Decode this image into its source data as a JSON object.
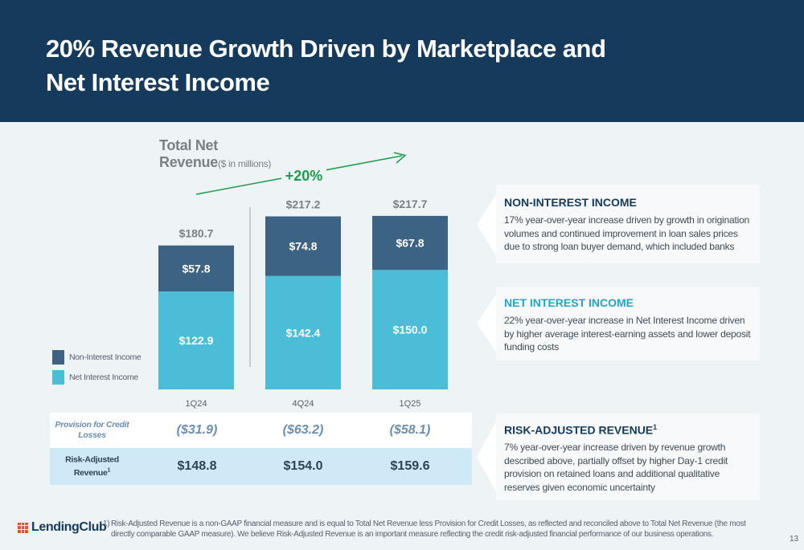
{
  "header": {
    "title": "20% Revenue Growth Driven by Marketplace and Net Interest Income"
  },
  "chart_title": {
    "main_line1": "Total Net",
    "main_line2": "Revenue",
    "unit": "($ in millions)"
  },
  "chart_data": {
    "type": "bar",
    "stacked": true,
    "categories": [
      "1Q24",
      "4Q24",
      "1Q25"
    ],
    "series": [
      {
        "name": "Net Interest Income",
        "values": [
          122.9,
          142.4,
          150.0
        ],
        "labels": [
          "$122.9",
          "$142.4",
          "$150.0"
        ],
        "color": "#4bbdd6"
      },
      {
        "name": "Non-Interest Income",
        "values": [
          57.8,
          74.8,
          67.8
        ],
        "labels": [
          "$57.8",
          "$74.8",
          "$67.8"
        ],
        "color": "#3d6384"
      }
    ],
    "totals": [
      180.7,
      217.2,
      217.7
    ],
    "total_labels": [
      "$180.7",
      "$217.2",
      "$217.7"
    ],
    "growth_annotation": "+20%",
    "ylim": [
      0,
      217.7
    ],
    "legend_placement": "left"
  },
  "legend": {
    "items": [
      {
        "label": "Non-Interest Income",
        "color": "#3d6384"
      },
      {
        "label": "Net Interest Income",
        "color": "#4bbdd6"
      }
    ]
  },
  "table": {
    "provision": {
      "label": "Provision for Credit Losses",
      "values": [
        "($31.9)",
        "($63.2)",
        "($58.1)"
      ]
    },
    "risk_adjusted": {
      "label": "Risk-Adjusted Revenue",
      "sup": "1",
      "values": [
        "$148.8",
        "$154.0",
        "$159.6"
      ]
    }
  },
  "panels": [
    {
      "title": "NON-INTEREST INCOME",
      "text": "17% year-over-year increase driven by growth in origination volumes and continued improvement in loan sales prices due to strong loan buyer demand, which included banks"
    },
    {
      "title": "NET INTEREST INCOME",
      "text": "22% year-over-year increase in Net Interest Income driven by higher average interest-earning assets and lower deposit funding costs"
    },
    {
      "title": "RISK-ADJUSTED REVENUE",
      "sup": "1",
      "text": "7% year-over-year increase driven by revenue growth described above, partially offset by higher Day-1 credit provision on retained loans and additional qualitative reserves given economic uncertainty"
    }
  ],
  "logo": {
    "text": "LendingClub",
    "color": "#e4532b"
  },
  "footnote": {
    "num": "1)",
    "text": "Risk-Adjusted Revenue is a non-GAAP financial measure and is equal to Total Net Revenue less Provision for Credit Losses, as reflected and reconciled above to Total Net Revenue (the most directly comparable GAAP measure). We believe Risk-Adjusted Revenue is an important measure reflecting the credit risk-adjusted financial performance of our business operations."
  },
  "page_number": "13"
}
